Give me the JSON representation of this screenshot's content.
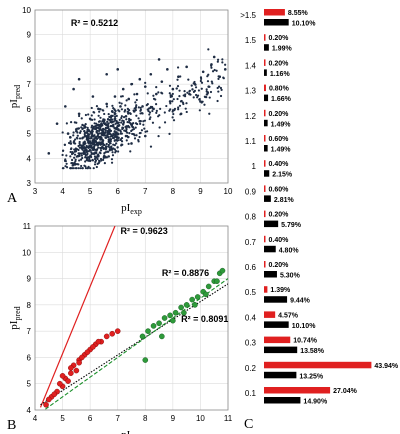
{
  "chart_data": [
    {
      "type": "scatter",
      "panel_label": "A",
      "xlabel": {
        "base": "pI",
        "sub": "exp"
      },
      "ylabel": {
        "base": "pI",
        "sub": "pred"
      },
      "xlim": [
        3,
        10
      ],
      "ylim": [
        3,
        10
      ],
      "x_ticks": [
        "3",
        "4",
        "5",
        "6",
        "7",
        "8",
        "9",
        "10"
      ],
      "y_ticks": [
        "3",
        "4",
        "5",
        "6",
        "7",
        "8",
        "9",
        "10"
      ],
      "annotation": "R² = 0.5212",
      "series": [
        {
          "color": "#1f2d44",
          "points": [
            [
              4.3,
              4.6
            ],
            [
              4.5,
              5.1
            ],
            [
              4.7,
              4.4
            ],
            [
              4.8,
              5.3
            ],
            [
              4.9,
              4.9
            ],
            [
              5.0,
              5.6
            ],
            [
              5.1,
              4.6
            ],
            [
              5.2,
              5.2
            ],
            [
              5.3,
              6.0
            ],
            [
              5.4,
              4.8
            ],
            [
              5.5,
              5.5
            ],
            [
              5.6,
              6.2
            ],
            [
              5.7,
              5.0
            ],
            [
              5.8,
              5.9
            ],
            [
              5.9,
              6.5
            ],
            [
              6.0,
              5.3
            ],
            [
              6.1,
              6.1
            ],
            [
              6.2,
              6.8
            ],
            [
              6.3,
              5.7
            ],
            [
              6.4,
              6.4
            ],
            [
              6.5,
              7.0
            ],
            [
              6.6,
              5.9
            ],
            [
              6.7,
              6.6
            ],
            [
              6.8,
              7.2
            ],
            [
              6.9,
              6.1
            ],
            [
              7.0,
              6.9
            ],
            [
              7.2,
              7.4
            ],
            [
              7.4,
              6.6
            ],
            [
              7.6,
              7.1
            ],
            [
              7.8,
              7.6
            ],
            [
              8.0,
              6.8
            ],
            [
              8.2,
              7.3
            ],
            [
              8.5,
              7.7
            ],
            [
              8.8,
              7.0
            ],
            [
              9.1,
              7.5
            ],
            [
              9.4,
              7.8
            ],
            [
              9.7,
              7.3
            ],
            [
              3.5,
              4.2
            ],
            [
              3.8,
              5.4
            ],
            [
              4.1,
              6.1
            ],
            [
              4.4,
              6.8
            ],
            [
              4.6,
              7.2
            ],
            [
              5.0,
              3.9
            ],
            [
              5.3,
              4.1
            ],
            [
              5.6,
              7.4
            ],
            [
              6.0,
              7.6
            ],
            [
              6.5,
              4.6
            ],
            [
              7.0,
              4.9
            ],
            [
              7.5,
              8.0
            ],
            [
              8.3,
              5.8
            ],
            [
              9.0,
              6.3
            ],
            [
              9.5,
              8.1
            ],
            [
              9.9,
              7.6
            ],
            [
              4.2,
              5.0
            ],
            [
              4.6,
              5.8
            ],
            [
              5.1,
              6.5
            ],
            [
              5.5,
              4.4
            ],
            [
              5.9,
              5.6
            ],
            [
              6.3,
              4.9
            ],
            [
              6.8,
              5.5
            ],
            [
              7.3,
              6.0
            ],
            [
              7.9,
              6.3
            ],
            [
              8.6,
              6.6
            ],
            [
              9.3,
              6.9
            ]
          ]
        }
      ]
    },
    {
      "type": "scatter",
      "panel_label": "B",
      "xlabel": {
        "base": "pI",
        "sub": "exp"
      },
      "ylabel": {
        "base": "pI",
        "sub": "pred"
      },
      "xlim": [
        4,
        11
      ],
      "ylim": [
        4,
        11
      ],
      "x_ticks": [
        "4",
        "5",
        "6",
        "7",
        "8",
        "9",
        "10",
        "11"
      ],
      "y_ticks": [
        "4",
        "5",
        "6",
        "7",
        "8",
        "9",
        "10",
        "11"
      ],
      "annotations": [
        "R² = 0.9623",
        "R² = 0.8876",
        "R² = 0.8091"
      ],
      "series": [
        {
          "color": "#e02020",
          "points": [
            [
              4.4,
              4.2
            ],
            [
              4.6,
              4.5
            ],
            [
              4.8,
              4.7
            ],
            [
              5.0,
              4.9
            ],
            [
              5.1,
              5.2
            ],
            [
              5.3,
              5.4
            ],
            [
              5.4,
              5.7
            ],
            [
              5.6,
              5.9
            ],
            [
              5.8,
              6.1
            ],
            [
              6.0,
              6.3
            ],
            [
              6.2,
              6.5
            ],
            [
              6.4,
              6.6
            ],
            [
              6.6,
              6.8
            ],
            [
              6.8,
              6.9
            ],
            [
              7.0,
              7.0
            ],
            [
              4.5,
              4.4
            ],
            [
              4.9,
              5.0
            ],
            [
              5.2,
              5.1
            ],
            [
              5.5,
              5.5
            ],
            [
              5.7,
              6.0
            ],
            [
              5.9,
              6.2
            ],
            [
              6.1,
              6.4
            ],
            [
              6.3,
              6.6
            ],
            [
              4.7,
              4.6
            ],
            [
              5.0,
              5.3
            ],
            [
              5.3,
              5.6
            ],
            [
              5.6,
              5.8
            ]
          ],
          "trend": [
            [
              4.2,
              4.1
            ],
            [
              6.9,
              11.0
            ]
          ]
        },
        {
          "color": "#2e9a3a",
          "points": [
            [
              7.9,
              6.8
            ],
            [
              8.1,
              7.0
            ],
            [
              8.3,
              7.2
            ],
            [
              8.5,
              7.3
            ],
            [
              8.7,
              7.5
            ],
            [
              8.9,
              7.6
            ],
            [
              9.1,
              7.7
            ],
            [
              9.3,
              7.9
            ],
            [
              9.5,
              8.0
            ],
            [
              9.7,
              8.2
            ],
            [
              9.9,
              8.3
            ],
            [
              10.1,
              8.5
            ],
            [
              10.3,
              8.7
            ],
            [
              10.5,
              8.9
            ],
            [
              10.7,
              9.2
            ],
            [
              8.0,
              5.9
            ],
            [
              8.6,
              6.8
            ],
            [
              9.0,
              7.4
            ],
            [
              9.4,
              7.7
            ],
            [
              9.8,
              8.0
            ],
            [
              10.2,
              8.4
            ],
            [
              10.6,
              8.9
            ],
            [
              10.8,
              9.3
            ]
          ],
          "trend": [
            [
              4.2,
              3.9
            ],
            [
              11.0,
              9.0
            ]
          ]
        }
      ],
      "overall_trend": [
        [
          4.2,
          4.2
        ],
        [
          11.0,
          8.8
        ]
      ]
    },
    {
      "type": "bar",
      "panel_label": "C",
      "categories": [
        ">1.5",
        "1.5",
        "1.4",
        "1.3",
        "1.2",
        "1.1",
        "1",
        "0.9",
        "0.8",
        "0.7",
        "0.6",
        "0.5",
        "0.4",
        "0.3",
        "0.2",
        "0.1"
      ],
      "series": [
        {
          "color": "#e02020",
          "values": [
            8.55,
            0.2,
            0.2,
            0.8,
            0.2,
            0.6,
            0.4,
            0.6,
            0.2,
            0.4,
            0.2,
            1.39,
            4.57,
            10.74,
            43.94,
            27.04
          ],
          "labels": [
            "8.55%",
            "0.20%",
            "0.20%",
            "0.80%",
            "0.20%",
            "0.60%",
            "0.40%",
            "0.60%",
            "0.20%",
            "0.40%",
            "0.20%",
            "1.39%",
            "4.57%",
            "10.74%",
            "43.94%",
            "27.04%"
          ]
        },
        {
          "color": "#000000",
          "values": [
            10.1,
            1.99,
            1.16,
            1.66,
            1.49,
            1.49,
            2.15,
            2.81,
            5.79,
            4.8,
            5.3,
            9.44,
            10.1,
            13.58,
            13.25,
            14.9
          ],
          "labels": [
            "10.10%",
            "1.99%",
            "1.16%",
            "1.66%",
            "1.49%",
            "1.49%",
            "2.15%",
            "2.81%",
            "5.79%",
            "4.80%",
            "5.30%",
            "9.44%",
            "10.10%",
            "13.58%",
            "13.25%",
            "14.90%"
          ]
        }
      ]
    }
  ]
}
